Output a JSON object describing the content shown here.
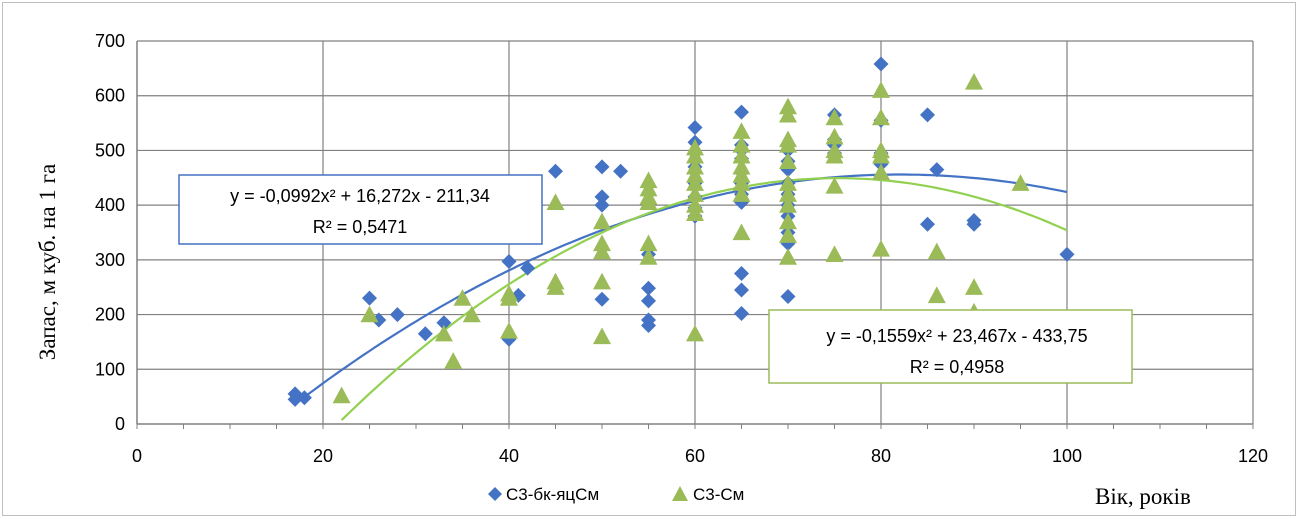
{
  "chart_data": {
    "type": "scatter",
    "ylabel": "Запас, м куб. на 1 га",
    "xlabel": "Вік, років",
    "xlim": [
      0,
      120
    ],
    "ylim": [
      0,
      700
    ],
    "xticks": [
      "0",
      "20",
      "40",
      "60",
      "80",
      "100",
      "120"
    ],
    "yticks": [
      "0",
      "100",
      "200",
      "300",
      "400",
      "500",
      "600",
      "700"
    ],
    "grid": true,
    "legend_position": "bottom",
    "series": [
      {
        "name": "С3-бк-яцСм",
        "marker": "diamond",
        "color": "#4472c4",
        "points": [
          [
            17,
            55
          ],
          [
            17,
            45
          ],
          [
            18,
            48
          ],
          [
            25,
            230
          ],
          [
            26,
            190
          ],
          [
            28,
            200
          ],
          [
            31,
            165
          ],
          [
            33,
            185
          ],
          [
            40,
            297
          ],
          [
            40,
            155
          ],
          [
            41,
            235
          ],
          [
            42,
            285
          ],
          [
            45,
            462
          ],
          [
            50,
            470
          ],
          [
            50,
            415
          ],
          [
            50,
            400
          ],
          [
            50,
            228
          ],
          [
            52,
            462
          ],
          [
            55,
            310
          ],
          [
            55,
            248
          ],
          [
            55,
            225
          ],
          [
            55,
            190
          ],
          [
            55,
            180
          ],
          [
            60,
            542
          ],
          [
            60,
            515
          ],
          [
            60,
            495
          ],
          [
            60,
            470
          ],
          [
            60,
            440
          ],
          [
            60,
            415
          ],
          [
            60,
            395
          ],
          [
            60,
            380
          ],
          [
            65,
            570
          ],
          [
            65,
            510
          ],
          [
            65,
            500
          ],
          [
            65,
            485
          ],
          [
            65,
            460
          ],
          [
            65,
            440
          ],
          [
            65,
            420
          ],
          [
            65,
            405
          ],
          [
            65,
            275
          ],
          [
            65,
            245
          ],
          [
            65,
            202
          ],
          [
            70,
            500
          ],
          [
            70,
            480
          ],
          [
            70,
            465
          ],
          [
            70,
            440
          ],
          [
            70,
            420
          ],
          [
            70,
            400
          ],
          [
            70,
            380
          ],
          [
            70,
            350
          ],
          [
            70,
            330
          ],
          [
            70,
            233
          ],
          [
            75,
            565
          ],
          [
            75,
            520
          ],
          [
            75,
            510
          ],
          [
            75,
            495
          ],
          [
            80,
            658
          ],
          [
            80,
            555
          ],
          [
            80,
            495
          ],
          [
            80,
            475
          ],
          [
            85,
            565
          ],
          [
            85,
            365
          ],
          [
            86,
            465
          ],
          [
            90,
            372
          ],
          [
            90,
            365
          ],
          [
            100,
            310
          ]
        ],
        "trendline": {
          "equation": "y = -0,0992x² + 16,272x - 211,34",
          "r2": "R² = 0,5471",
          "a": -0.0992,
          "b": 16.272,
          "c": -211.34,
          "x_range": [
            17,
            100
          ],
          "color": "#4472c4"
        }
      },
      {
        "name": "С3-См",
        "marker": "triangle",
        "color": "#9bbb59",
        "points": [
          [
            22,
            52
          ],
          [
            25,
            200
          ],
          [
            33,
            165
          ],
          [
            34,
            115
          ],
          [
            35,
            230
          ],
          [
            36,
            200
          ],
          [
            40,
            238
          ],
          [
            40,
            230
          ],
          [
            40,
            170
          ],
          [
            45,
            405
          ],
          [
            45,
            260
          ],
          [
            45,
            250
          ],
          [
            50,
            370
          ],
          [
            50,
            330
          ],
          [
            50,
            315
          ],
          [
            50,
            260
          ],
          [
            50,
            160
          ],
          [
            55,
            445
          ],
          [
            55,
            430
          ],
          [
            55,
            415
          ],
          [
            55,
            405
          ],
          [
            55,
            330
          ],
          [
            55,
            305
          ],
          [
            60,
            505
          ],
          [
            60,
            490
          ],
          [
            60,
            470
          ],
          [
            60,
            455
          ],
          [
            60,
            440
          ],
          [
            60,
            420
          ],
          [
            60,
            400
          ],
          [
            60,
            385
          ],
          [
            60,
            165
          ],
          [
            65,
            535
          ],
          [
            65,
            510
          ],
          [
            65,
            490
          ],
          [
            65,
            470
          ],
          [
            65,
            455
          ],
          [
            65,
            440
          ],
          [
            65,
            420
          ],
          [
            65,
            350
          ],
          [
            70,
            580
          ],
          [
            70,
            565
          ],
          [
            70,
            520
          ],
          [
            70,
            510
          ],
          [
            70,
            480
          ],
          [
            70,
            440
          ],
          [
            70,
            420
          ],
          [
            70,
            400
          ],
          [
            70,
            370
          ],
          [
            70,
            345
          ],
          [
            70,
            305
          ],
          [
            75,
            560
          ],
          [
            75,
            525
          ],
          [
            75,
            500
          ],
          [
            75,
            490
          ],
          [
            75,
            435
          ],
          [
            75,
            310
          ],
          [
            80,
            610
          ],
          [
            80,
            560
          ],
          [
            80,
            500
          ],
          [
            80,
            490
          ],
          [
            80,
            460
          ],
          [
            80,
            320
          ],
          [
            86,
            315
          ],
          [
            86,
            235
          ],
          [
            90,
            625
          ],
          [
            90,
            250
          ],
          [
            90,
            205
          ],
          [
            95,
            440
          ]
        ],
        "trendline": {
          "equation": "y = -0,1559x² + 23,467x - 433,75",
          "r2": "R² = 0,4958",
          "a": -0.1559,
          "b": 23.467,
          "c": -433.75,
          "x_range": [
            21,
            100
          ],
          "color": "#92d050"
        }
      }
    ]
  }
}
